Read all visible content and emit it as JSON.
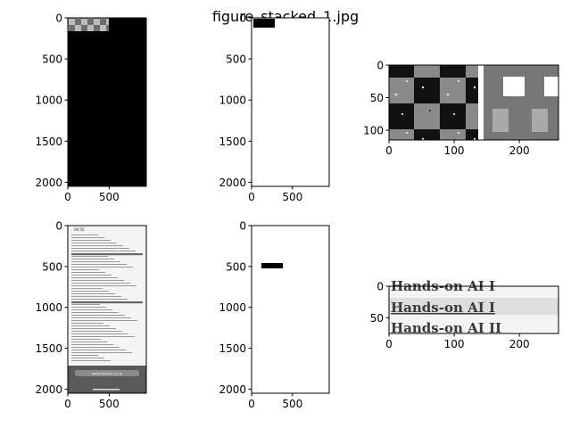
{
  "figure": {
    "title": "figure_stacked_1.jpg"
  },
  "chart_data": [
    {
      "type": "image",
      "panel": "top-left",
      "content": "tall black image with a small grey checkerboard strip at the top",
      "xlim": [
        0,
        950
      ],
      "ylim": [
        0,
        2050
      ],
      "xticks": [
        0,
        500
      ],
      "yticks": [
        0,
        500,
        1000,
        1500,
        2000
      ]
    },
    {
      "type": "image",
      "panel": "top-middle",
      "content": "tall white image with a small black rectangle at the top",
      "xlim": [
        0,
        950
      ],
      "ylim": [
        0,
        2050
      ],
      "xticks": [
        0,
        500
      ],
      "yticks": [
        0,
        500,
        1000,
        1500,
        2000
      ]
    },
    {
      "type": "image",
      "panel": "top-right",
      "content": "grey checkerboard with noise on the left, grey panel with white squares on the right",
      "xlim": [
        0,
        260
      ],
      "ylim": [
        0,
        115
      ],
      "xticks": [
        0,
        100,
        200
      ],
      "yticks": [
        0,
        50,
        100
      ]
    },
    {
      "type": "image",
      "panel": "bottom-left",
      "content": "greyscale phone screenshot of a long document list",
      "screen_time": "08:56",
      "url_bar": "www.hands-on.ai",
      "xlim": [
        0,
        950
      ],
      "ylim": [
        0,
        2050
      ],
      "xticks": [
        0,
        500
      ],
      "yticks": [
        0,
        500,
        1000,
        1500,
        2000
      ]
    },
    {
      "type": "image",
      "panel": "bottom-middle",
      "content": "tall white image with a small black horizontal bar",
      "xlim": [
        0,
        950
      ],
      "ylim": [
        0,
        2050
      ],
      "xticks": [
        0,
        500
      ],
      "yticks": [
        0,
        500,
        1000,
        1500,
        2000
      ]
    },
    {
      "type": "image",
      "panel": "bottom-right",
      "content": "crop of a list with text rows",
      "rows": [
        "Hands-on AI I",
        "Hands-on AI I",
        "Hands-on AI II"
      ],
      "xlim": [
        0,
        260
      ],
      "ylim": [
        0,
        75
      ],
      "xticks": [
        0,
        100,
        200
      ],
      "yticks": [
        0,
        50
      ]
    }
  ]
}
